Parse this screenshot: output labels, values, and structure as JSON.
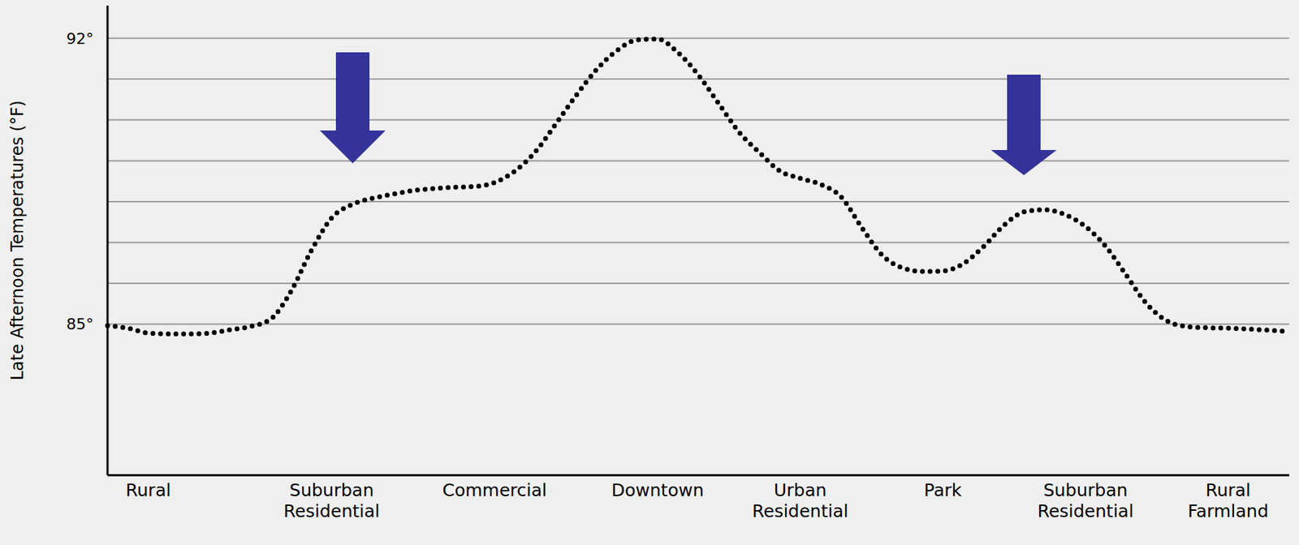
{
  "chart_data": {
    "type": "line",
    "y_label": "Late Afternoon Temperatures (°F)",
    "categories": [
      null,
      null,
      "Rural",
      null,
      null,
      null,
      null,
      null,
      null,
      null,
      null,
      "Suburban Residential",
      null,
      null,
      null,
      null,
      null,
      null,
      null,
      "Commercial",
      null,
      null,
      null,
      null,
      null,
      null,
      null,
      "Downtown",
      null,
      null,
      null,
      null,
      null,
      null,
      "Urban Residential",
      null,
      null,
      null,
      null,
      null,
      null,
      "Park",
      null,
      null,
      null,
      null,
      null,
      null,
      "Suburban Residential",
      null,
      null,
      null,
      null,
      null,
      null,
      "Rural Farmland",
      null,
      null,
      null
    ],
    "values": [
      84.96,
      84.9,
      84.78,
      84.76,
      84.76,
      84.78,
      84.86,
      84.94,
      85.12,
      85.8,
      86.8,
      87.6,
      87.93,
      88.08,
      88.18,
      88.27,
      88.32,
      88.35,
      88.37,
      88.47,
      88.75,
      89.22,
      89.9,
      90.6,
      91.23,
      91.7,
      91.96,
      91.98,
      91.65,
      91.1,
      90.4,
      89.7,
      89.2,
      88.75,
      88.57,
      88.42,
      88.12,
      87.38,
      86.7,
      86.38,
      86.29,
      86.3,
      86.48,
      86.9,
      87.42,
      87.75,
      87.8,
      87.68,
      87.39,
      86.9,
      86.2,
      85.5,
      85.08,
      84.94,
      84.91,
      84.9,
      84.88,
      84.85,
      84.82
    ],
    "color": "#000000",
    "line_style": "dotted",
    "ylim": [
      81.3,
      92.8
    ],
    "yticks": [
      {
        "value": 85,
        "label": "85°"
      },
      {
        "value": 92,
        "label": "92°"
      }
    ],
    "grid": true
  }
}
